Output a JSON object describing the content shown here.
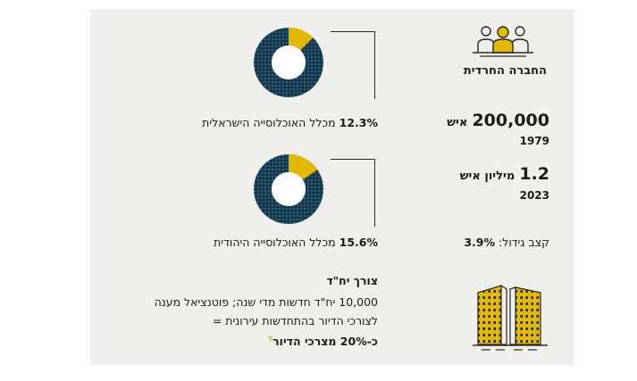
{
  "group": {
    "label": "החברה החרדית"
  },
  "populations": [
    {
      "value": "200,000",
      "unit": "איש",
      "year": "1979"
    },
    {
      "value": "1.2",
      "unit": "מיליון איש",
      "year": "2023"
    }
  ],
  "growth": {
    "label": "קצב גידול:",
    "value": "3.9%"
  },
  "shares": [
    {
      "percent": "12.3%",
      "label": "מכלל האוכלוסייה הישראלית",
      "fraction": 0.123
    },
    {
      "percent": "15.6%",
      "label": "מכלל האוכלוסייה היהודית",
      "fraction": 0.156
    }
  ],
  "housing": {
    "title": "צורך יח\"ד",
    "line1": "10,000 יח\"ד חדשות מדי שנה; פוטנציאל מענה",
    "line2": "לצורכי הדיור בהתחדשות עירונית =",
    "line3": "כ-20% מצרכי הדיור",
    "footnote": "5"
  },
  "colors": {
    "dark": "#133a4e",
    "accent": "#e3b800",
    "panel": "#f0efeb"
  }
}
